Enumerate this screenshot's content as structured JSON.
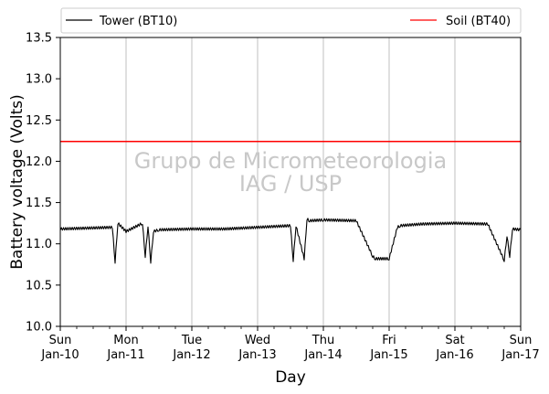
{
  "chart_data": {
    "type": "line",
    "title": "",
    "xlabel": "Day",
    "ylabel": "Battery voltage (Volts)",
    "ylim": [
      10.0,
      13.5
    ],
    "yticks": [
      "10.0",
      "10.5",
      "11.0",
      "11.5",
      "12.0",
      "12.5",
      "13.0",
      "13.5"
    ],
    "xlim": [
      "2021-01-10",
      "2021-01-17"
    ],
    "xticks": [
      {
        "day": "Sun",
        "date": "Jan-10"
      },
      {
        "day": "Mon",
        "date": "Jan-11"
      },
      {
        "day": "Tue",
        "date": "Jan-12"
      },
      {
        "day": "Wed",
        "date": "Jan-13"
      },
      {
        "day": "Thu",
        "date": "Jan-14"
      },
      {
        "day": "Fri",
        "date": "Jan-15"
      },
      {
        "day": "Sat",
        "date": "Jan-16"
      },
      {
        "day": "Sun",
        "date": "Jan-17"
      }
    ],
    "grid": "vertical",
    "legend_position": "top",
    "watermark": [
      "Grupo de Micrometeorologia",
      "IAG / USP"
    ],
    "series": [
      {
        "name": "Tower (BT10)",
        "color": "#000000",
        "x": [
          "2021-01-10 00:00",
          "2021-01-10 19:00",
          "2021-01-10 20:00",
          "2021-01-10 21:00",
          "2021-01-11 00:00",
          "2021-01-11 06:00",
          "2021-01-11 07:00",
          "2021-01-11 08:00",
          "2021-01-11 09:00",
          "2021-01-11 10:00",
          "2021-01-11 12:00",
          "2021-01-12 00:00",
          "2021-01-12 12:00",
          "2021-01-13 00:00",
          "2021-01-13 12:00",
          "2021-01-13 13:00",
          "2021-01-13 14:00",
          "2021-01-13 17:00",
          "2021-01-13 18:00",
          "2021-01-13 19:00",
          "2021-01-14 00:00",
          "2021-01-14 12:00",
          "2021-01-14 18:00",
          "2021-01-14 19:00",
          "2021-01-15 00:00",
          "2021-01-15 03:00",
          "2021-01-15 04:00",
          "2021-01-15 12:00",
          "2021-01-16 00:00",
          "2021-01-16 12:00",
          "2021-01-16 18:00",
          "2021-01-16 19:00",
          "2021-01-16 20:00",
          "2021-01-16 21:00",
          "2021-01-17 00:00"
        ],
        "y": [
          11.18,
          11.2,
          10.78,
          11.25,
          11.15,
          11.25,
          10.85,
          11.22,
          10.78,
          11.15,
          11.17,
          11.18,
          11.18,
          11.2,
          11.22,
          10.8,
          11.22,
          10.82,
          11.3,
          11.28,
          11.29,
          11.28,
          10.85,
          10.82,
          10.82,
          11.2,
          11.22,
          11.24,
          11.25,
          11.24,
          10.8,
          11.1,
          10.85,
          11.18,
          11.17
        ]
      },
      {
        "name": "Soil (BT40)",
        "color": "#ff0000",
        "x": [
          "2021-01-10 00:00",
          "2021-01-17 00:00"
        ],
        "y": [
          12.24,
          12.24
        ]
      }
    ]
  }
}
